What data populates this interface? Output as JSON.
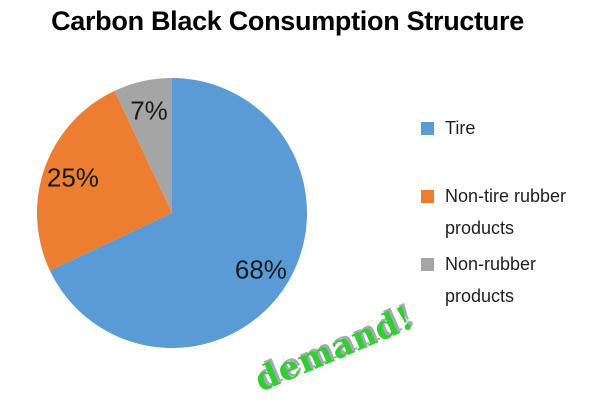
{
  "title": "Carbon Black Consumption Structure",
  "chart_data": {
    "type": "pie",
    "title": "Carbon Black Consumption Structure",
    "categories": [
      "Tire",
      "Non-tire rubber products",
      "Non-rubber products"
    ],
    "values": [
      68,
      25,
      7
    ],
    "unit": "percent",
    "slices": [
      {
        "label": "Tire",
        "value": 68,
        "data_label": "68%",
        "color": "#5B9BD5"
      },
      {
        "label": "Non-tire rubber products",
        "value": 25,
        "data_label": "25%",
        "color": "#ED7D31"
      },
      {
        "label": "Non-rubber products",
        "value": 7,
        "data_label": "7%",
        "color": "#A5A5A5"
      }
    ],
    "start_angle_deg": 0,
    "direction": "clockwise",
    "legend_position": "right",
    "data_labels": "inside-percent",
    "annotation": "demand!"
  },
  "legend": {
    "items": [
      {
        "label": "Tire",
        "color": "#5B9BD5"
      },
      {
        "label": "Non-tire rubber products",
        "color": "#ED7D31"
      },
      {
        "label": "Non-rubber products",
        "color": "#A5A5A5"
      }
    ]
  },
  "annotation": {
    "text": "demand!",
    "color": "#33cc33"
  }
}
